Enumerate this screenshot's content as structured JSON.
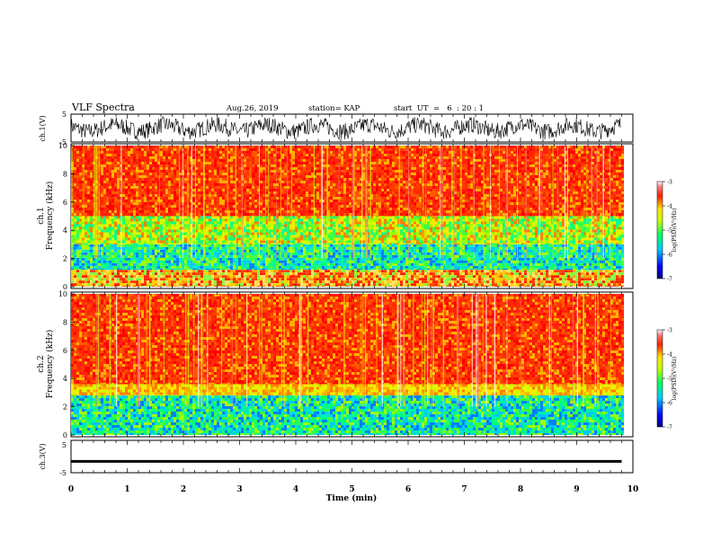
{
  "header": {
    "title": "VLF Spectra",
    "date": "Aug.26, 2019",
    "station": "station= KAP",
    "start": "start  UT  =   6  : 20 : 1"
  },
  "chart_data": [
    {
      "type": "line",
      "panel": "ch1-waveform",
      "ylabel": "ch.1(V)",
      "ylim": [
        -5,
        5
      ],
      "yticks": [
        "5",
        "-5"
      ],
      "x_range": [
        0,
        10
      ],
      "trace_envelope": {
        "x": [
          0,
          9.8
        ],
        "y_min": -5,
        "y_max": 5
      },
      "color": "#000000"
    },
    {
      "type": "heatmap",
      "panel": "ch1-spectrogram",
      "ylabel_top": "ch.1",
      "ylabel": "Frequency (kHz)",
      "ylim": [
        0,
        10
      ],
      "yticks": [
        "0",
        "2",
        "4",
        "6",
        "8",
        "10"
      ],
      "x_range": [
        0,
        9.8
      ],
      "colorbar": {
        "label": "log(PSD)(V²/Hz)",
        "range": [
          -7,
          -3
        ],
        "ticks": [
          "-3",
          "-4",
          "-5",
          "-6",
          "-7"
        ]
      },
      "bands_khz": [
        {
          "from": 0.0,
          "to": 1.2,
          "level": "mixed-yellow-red"
        },
        {
          "from": 1.2,
          "to": 3.0,
          "level": "green-cyan"
        },
        {
          "from": 3.0,
          "to": 5.0,
          "level": "yellow-green"
        },
        {
          "from": 5.0,
          "to": 10.0,
          "level": "red"
        }
      ]
    },
    {
      "type": "heatmap",
      "panel": "ch2-spectrogram",
      "ylabel_top": "ch.2",
      "ylabel": "Frequency (kHz)",
      "ylim": [
        0,
        10
      ],
      "yticks": [
        "0",
        "2",
        "4",
        "6",
        "8",
        "10"
      ],
      "x_range": [
        0,
        9.8
      ],
      "colorbar": {
        "label": "log(PSD)(V²/Hz)",
        "range": [
          -7,
          -3
        ],
        "ticks": [
          "-3",
          "-4",
          "-5",
          "-6",
          "-7"
        ]
      },
      "bands_khz": [
        {
          "from": 0.0,
          "to": 2.8,
          "level": "green-cyan"
        },
        {
          "from": 2.8,
          "to": 3.6,
          "level": "yellow"
        },
        {
          "from": 3.6,
          "to": 10.0,
          "level": "red"
        }
      ]
    },
    {
      "type": "line",
      "panel": "ch3-waveform",
      "ylabel": "ch.3(V)",
      "ylim": [
        -5,
        5
      ],
      "yticks": [
        "5",
        "-5"
      ],
      "x": [
        0,
        9.8
      ],
      "y": [
        -1.5,
        -1.5
      ],
      "color": "#000000"
    }
  ],
  "xaxis": {
    "label": "Time (min)",
    "ticks": [
      "0",
      "1",
      "2",
      "3",
      "4",
      "5",
      "6",
      "7",
      "8",
      "9",
      "10"
    ],
    "range": [
      0,
      10
    ]
  },
  "colors": {
    "frame": "#000000",
    "background": "#ffffff"
  }
}
